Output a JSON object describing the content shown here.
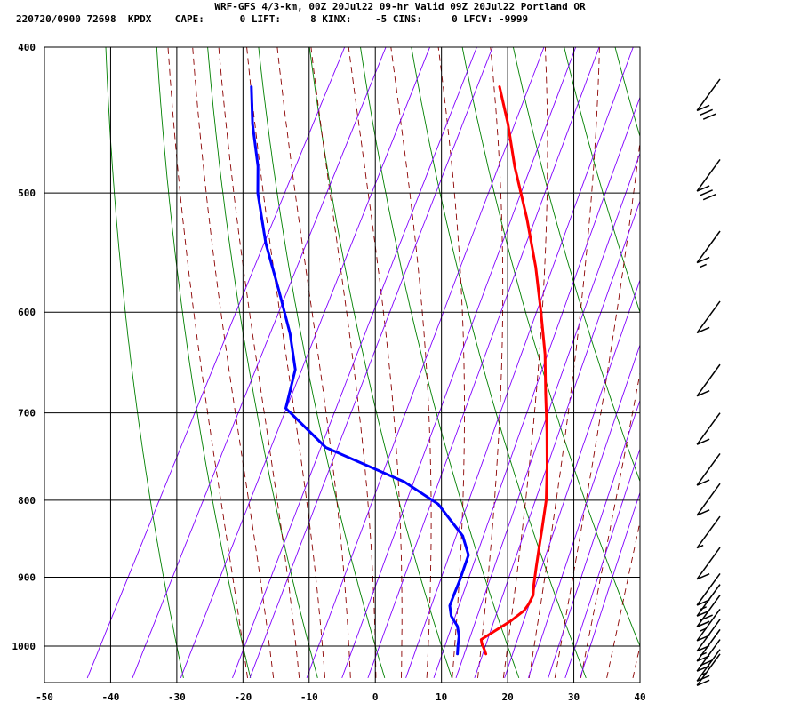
{
  "header": {
    "title": "WRF-GFS 4/3-km, 00Z 20Jul22 09-hr Valid 09Z 20Jul22 Portland OR",
    "stats": "220720/0900 72698  KPDX    CAPE:      0 LIFT:     8 KINX:    -5 CINS:     0 LFCV: -9999"
  },
  "chart_data": {
    "type": "line",
    "subtype": "skew-t log-p sounding",
    "title": "WRF-GFS 4/3-km, 00Z 20Jul22 09-hr Valid 09Z 20Jul22 Portland OR",
    "xlabel": "",
    "ylabel": "",
    "x_ticks": [
      -50,
      -40,
      -30,
      -20,
      -10,
      0,
      10,
      20,
      30,
      40
    ],
    "y_ticks": [
      400,
      500,
      600,
      700,
      800,
      900,
      1000
    ],
    "xlim": [
      -50,
      40
    ],
    "ylim": [
      1040,
      400
    ],
    "y_scale": "log (pressure, hPa)",
    "x_axis": "temperature at 1000 hPa reference (°C), skewed isotherms",
    "grid": true,
    "series": [
      {
        "color": "#ff0000",
        "points": [
          [
            1012,
            17.3
          ],
          [
            1006,
            16.8
          ],
          [
            996,
            15.9
          ],
          [
            990,
            15.5
          ],
          [
            980,
            16.6
          ],
          [
            962,
            18.6
          ],
          [
            947,
            19.8
          ],
          [
            938,
            20.0
          ],
          [
            925,
            20.0
          ],
          [
            910,
            19.3
          ],
          [
            885,
            18.3
          ],
          [
            860,
            17.3
          ],
          [
            835,
            16.3
          ],
          [
            800,
            14.8
          ],
          [
            760,
            12.4
          ],
          [
            720,
            9.7
          ],
          [
            680,
            6.7
          ],
          [
            640,
            3.6
          ],
          [
            600,
            -0.2
          ],
          [
            560,
            -4.4
          ],
          [
            520,
            -9.4
          ],
          [
            480,
            -15.2
          ],
          [
            450,
            -19.4
          ],
          [
            425,
            -23.5
          ]
        ]
      },
      {
        "color": "#0000ff",
        "points": [
          [
            1012,
            13.0
          ],
          [
            998,
            12.4
          ],
          [
            985,
            11.9
          ],
          [
            970,
            10.9
          ],
          [
            955,
            9.2
          ],
          [
            940,
            8.2
          ],
          [
            925,
            8.0
          ],
          [
            905,
            7.8
          ],
          [
            870,
            7.2
          ],
          [
            845,
            4.9
          ],
          [
            805,
            -1.2
          ],
          [
            778,
            -8.0
          ],
          [
            738,
            -22.5
          ],
          [
            695,
            -31.5
          ],
          [
            655,
            -33.0
          ],
          [
            620,
            -36.5
          ],
          [
            580,
            -41.5
          ],
          [
            540,
            -47.0
          ],
          [
            500,
            -52.0
          ],
          [
            480,
            -54.0
          ],
          [
            450,
            -58.0
          ],
          [
            425,
            -61.0
          ]
        ]
      }
    ],
    "reference_lines": {
      "isotherms_color": "#000000",
      "dry_adiabats_color": "#008000",
      "moist_adiabats_color": "#8b0000",
      "mixing_ratio_color": "#8000ff"
    },
    "wind_barbs": {
      "color": "#000000",
      "levels_hPa": [
        420,
        475,
        530,
        590,
        650,
        700,
        745,
        780,
        820,
        860,
        895,
        910,
        925,
        945,
        960,
        975,
        990,
        1005,
        1012
      ],
      "speeds_kt": [
        30,
        30,
        15,
        10,
        10,
        10,
        10,
        10,
        5,
        10,
        15,
        20,
        15,
        10,
        15,
        20,
        15,
        10,
        10
      ]
    }
  }
}
